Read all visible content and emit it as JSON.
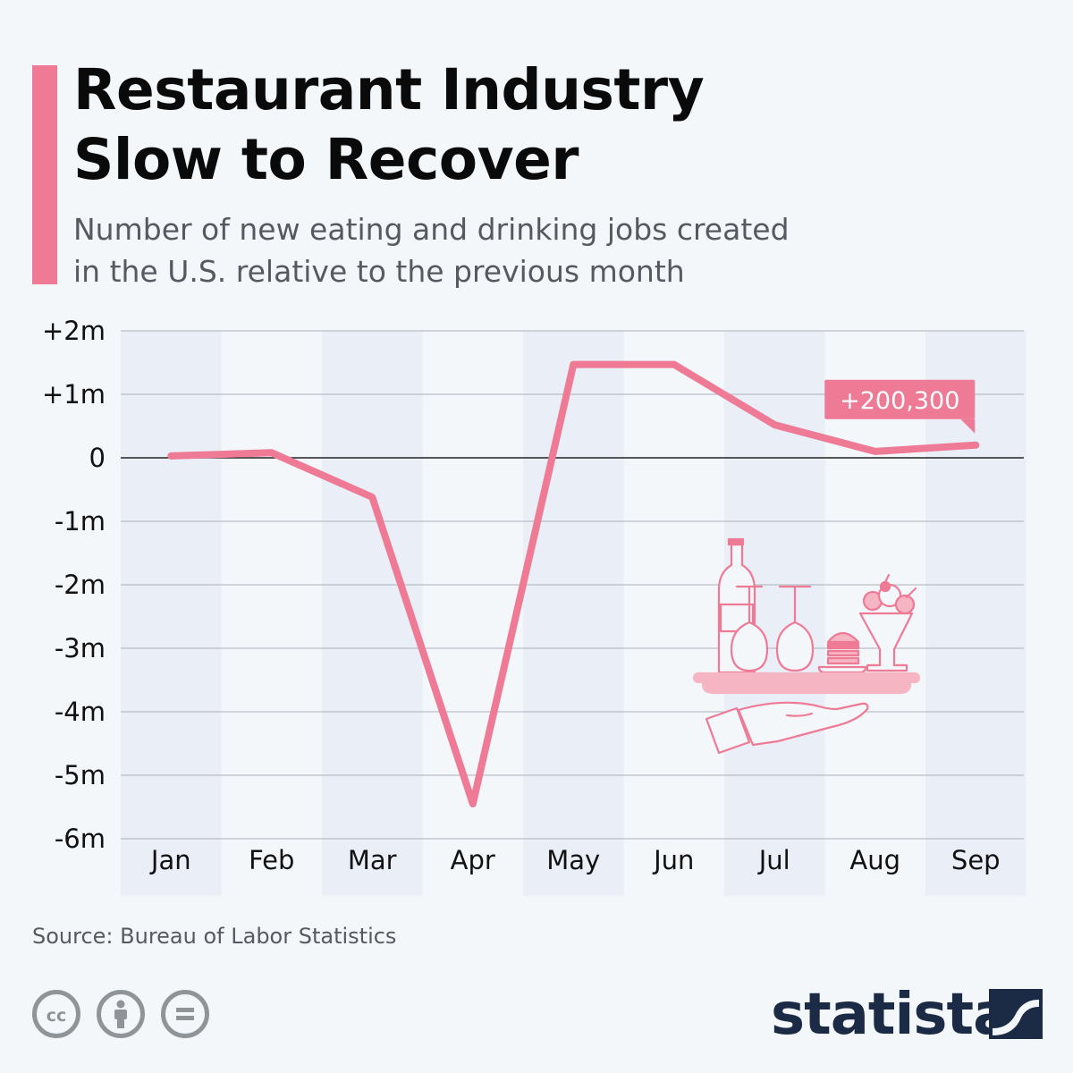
{
  "header": {
    "title_line1": "Restaurant Industry",
    "title_line2": "Slow to Recover",
    "subtitle_line1": "Number of new eating and drinking jobs created",
    "subtitle_line2": "in the U.S. relative to the previous month",
    "accent_color": "#ee7a95"
  },
  "chart_data": {
    "type": "line",
    "title": "Restaurant Industry Slow to Recover",
    "subtitle": "Number of new eating and drinking jobs created in the U.S. relative to the previous month",
    "categories": [
      "Jan",
      "Feb",
      "Mar",
      "Apr",
      "May",
      "Jun",
      "Jul",
      "Aug",
      "Sep"
    ],
    "series": [
      {
        "values": [
          30000,
          80000,
          -620000,
          -5450000,
          1470000,
          1470000,
          520000,
          100000,
          200300
        ],
        "color": "#ee7a95"
      }
    ],
    "ylim": [
      -6000000,
      2000000
    ],
    "yticks": [
      {
        "value": 2000000,
        "label": "+2m"
      },
      {
        "value": 1000000,
        "label": "+1m"
      },
      {
        "value": 0,
        "label": "0"
      },
      {
        "value": -1000000,
        "label": "-1m"
      },
      {
        "value": -2000000,
        "label": "-2m"
      },
      {
        "value": -3000000,
        "label": "-3m"
      },
      {
        "value": -4000000,
        "label": "-4m"
      },
      {
        "value": -5000000,
        "label": "-5m"
      },
      {
        "value": -6000000,
        "label": "-6m"
      }
    ],
    "grid": true,
    "alternating_column_bands": true,
    "annotation": {
      "category": "Sep",
      "label": "+200,300"
    },
    "xlabel": "",
    "ylabel": ""
  },
  "illustration": {
    "icon": "waiter-hand-tray-icon",
    "color": "#ee7a95"
  },
  "footer": {
    "source": "Source: Bureau of Labor Statistics",
    "license_icons": [
      "cc-icon",
      "attribution-icon",
      "no-derivatives-icon"
    ],
    "logo_text": "statista",
    "logo_color": "#1b2b45"
  }
}
